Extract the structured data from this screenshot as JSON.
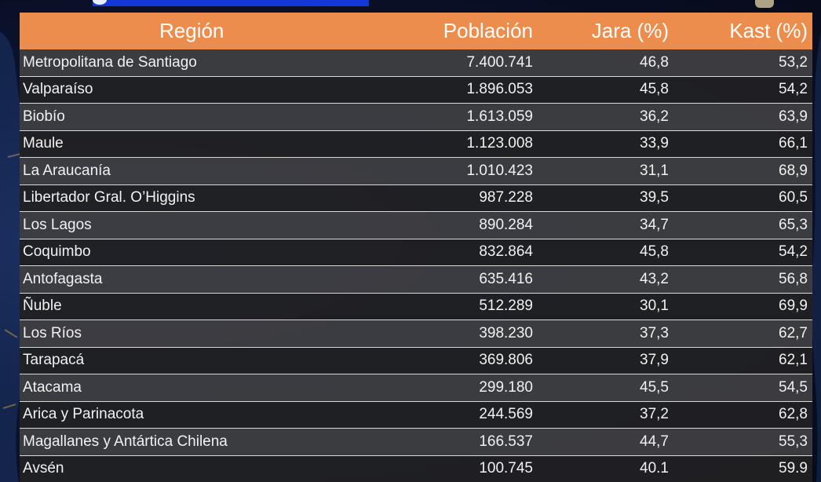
{
  "colors": {
    "header_bg": "#ec8d4d",
    "header_text": "#ffffff",
    "row_odd": "#3f3f42",
    "row_even": "#212123",
    "row_text": "#f1f1f1",
    "background": "#0b1430"
  },
  "table": {
    "headers": {
      "region": "Región",
      "population": "Población",
      "jara": "Jara (%)",
      "kast": "Kast (%)"
    },
    "rows": [
      {
        "region": "Metropolitana de Santiago",
        "population": "7.400.741",
        "jara": "46,8",
        "kast": "53,2"
      },
      {
        "region": "Valparaíso",
        "population": "1.896.053",
        "jara": "45,8",
        "kast": "54,2"
      },
      {
        "region": "Biobío",
        "population": "1.613.059",
        "jara": "36,2",
        "kast": "63,9"
      },
      {
        "region": "Maule",
        "population": "1.123.008",
        "jara": "33,9",
        "kast": "66,1"
      },
      {
        "region": "La Araucanía",
        "population": "1.010.423",
        "jara": "31,1",
        "kast": "68,9"
      },
      {
        "region": "Libertador Gral. O’Higgins",
        "population": "987.228",
        "jara": "39,5",
        "kast": "60,5"
      },
      {
        "region": "Los Lagos",
        "population": "890.284",
        "jara": "34,7",
        "kast": "65,3"
      },
      {
        "region": "Coquimbo",
        "population": "832.864",
        "jara": "45,8",
        "kast": "54,2"
      },
      {
        "region": "Antofagasta",
        "population": "635.416",
        "jara": "43,2",
        "kast": "56,8"
      },
      {
        "region": "Ñuble",
        "population": "512.289",
        "jara": "30,1",
        "kast": "69,9"
      },
      {
        "region": "Los Ríos",
        "population": "398.230",
        "jara": "37,3",
        "kast": "62,7"
      },
      {
        "region": "Tarapacá",
        "population": "369.806",
        "jara": "37,9",
        "kast": "62,1"
      },
      {
        "region": "Atacama",
        "population": "299.180",
        "jara": "45,5",
        "kast": "54,5"
      },
      {
        "region": "Arica y Parinacota",
        "population": "244.569",
        "jara": "37,2",
        "kast": "62,8"
      },
      {
        "region": "Magallanes y Antártica Chilena",
        "population": "166.537",
        "jara": "44,7",
        "kast": "55,3"
      },
      {
        "region": "Avsén",
        "population": "100.745",
        "jara": "40.1",
        "kast": "59.9"
      }
    ]
  }
}
